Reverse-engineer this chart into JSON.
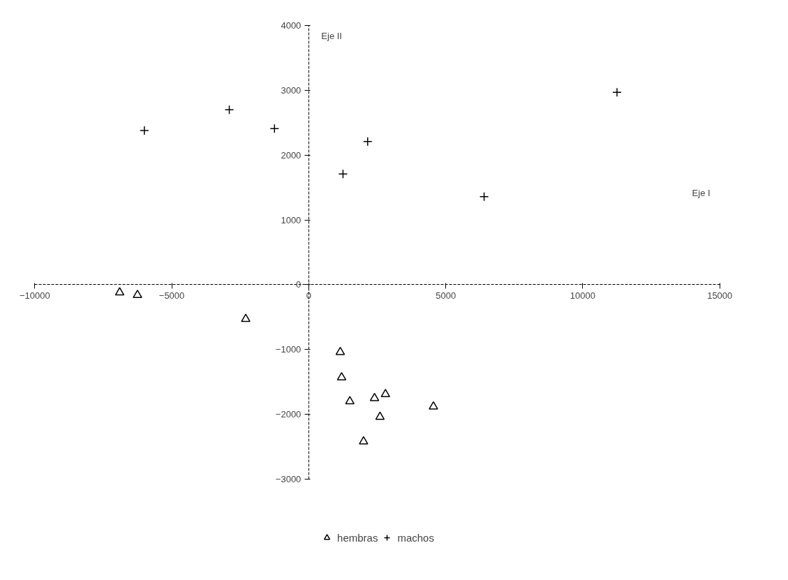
{
  "chart_data": {
    "type": "scatter",
    "xlim": [
      -10000,
      15000
    ],
    "ylim": [
      -3000,
      4000
    ],
    "xticks": [
      -10000,
      -5000,
      0,
      5000,
      10000,
      15000
    ],
    "yticks": [
      -3000,
      -2000,
      -1000,
      0,
      1000,
      2000,
      3000,
      4000
    ],
    "legend": "bottom",
    "annotations": [
      "Eje  II",
      "Eje  I"
    ],
    "series": [
      {
        "name": "hembras",
        "color": "#000000",
        "marker": "triangle",
        "x": [
          -6900,
          -6250,
          -2300,
          1150,
          1200,
          1500,
          2400,
          2800,
          2600,
          2000,
          4550
        ],
        "values": [
          -120,
          -160,
          -530,
          -1040,
          -1430,
          -1800,
          -1750,
          -1690,
          -2040,
          -2420,
          -1880
        ]
      },
      {
        "name": "machos",
        "color": "#000000",
        "marker": "cross",
        "x": [
          -6000,
          -2900,
          -1250,
          2150,
          1250,
          6400,
          11250
        ],
        "values": [
          2380,
          2700,
          2410,
          2210,
          1710,
          1360,
          2970
        ]
      }
    ]
  }
}
